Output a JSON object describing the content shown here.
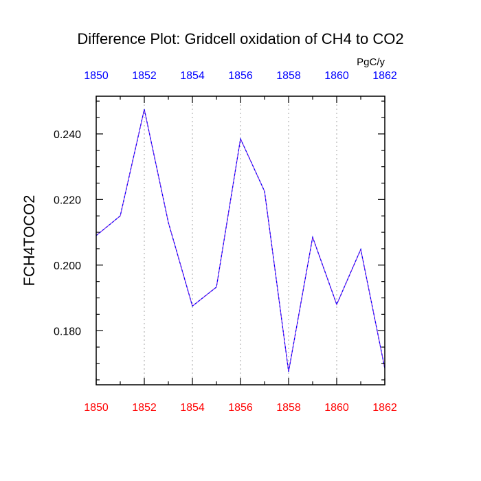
{
  "chart_data": {
    "type": "line",
    "title": "Difference Plot: Gridcell oxidation of CH4 to CO2",
    "units": "PgC/y",
    "ylabel": "FCH4TOCO2",
    "xlabel": "",
    "x": [
      1850,
      1851,
      1852,
      1853,
      1854,
      1855,
      1856,
      1857,
      1858,
      1859,
      1860,
      1861,
      1862
    ],
    "series": [
      {
        "name": "FCH4TOCO2",
        "values": [
          0.209,
          0.215,
          0.2475,
          0.213,
          0.1875,
          0.1933,
          0.2385,
          0.2225,
          0.1675,
          0.2085,
          0.188,
          0.2048,
          0.1685
        ]
      }
    ],
    "xlim": [
      1850,
      1862
    ],
    "ylim": [
      0.1635,
      0.2515
    ],
    "x_ticks": [
      "1850",
      "1852",
      "1854",
      "1856",
      "1858",
      "1860",
      "1862"
    ],
    "y_ticks": [
      "0.180",
      "0.200",
      "0.220",
      "0.240"
    ],
    "grid": "vertical dotted at major x ticks",
    "colors": {
      "line": "#8a2be2",
      "line_dash": "#0000ff",
      "bottom_ticks": "#ff0000",
      "top_ticks": "#0000ff",
      "axes": "#000000",
      "grid": "#b4b4b4"
    }
  }
}
